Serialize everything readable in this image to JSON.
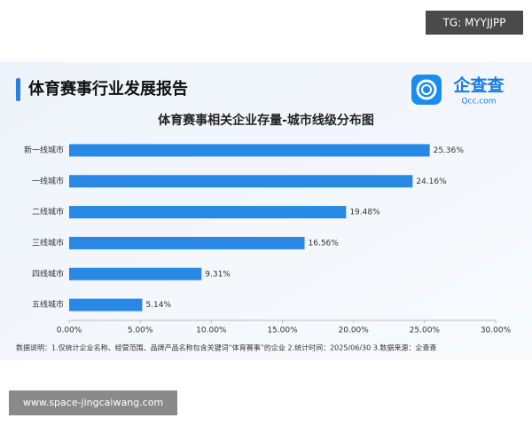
{
  "header": {
    "title": "体育赛事行业发展报告",
    "logo_name": "企查查",
    "logo_domain": "Qcc.com"
  },
  "watermarks": [
    "TG: MYYJJPP",
    "www.space-jingcaiwang.com"
  ],
  "chart_data": {
    "type": "hbar",
    "title": "体育赛事相关企业存量-城市线级分布图",
    "categories": [
      "新一线城市",
      "一线城市",
      "二线城市",
      "三线城市",
      "四线城市",
      "五线城市"
    ],
    "values": [
      25.36,
      24.16,
      19.48,
      16.56,
      9.31,
      5.14
    ],
    "value_labels": [
      "25.36%",
      "24.16%",
      "19.48%",
      "16.56%",
      "9.31%",
      "5.14%"
    ],
    "color": "#2789e3",
    "xlim": [
      0,
      30
    ],
    "xticks": [
      {
        "value": 0,
        "label": "0.00%"
      },
      {
        "value": 5,
        "label": "5.00%"
      },
      {
        "value": 10,
        "label": "10.00%"
      },
      {
        "value": 15,
        "label": "15.00%"
      },
      {
        "value": 20,
        "label": "20.00%"
      },
      {
        "value": 25,
        "label": "25.00%"
      },
      {
        "value": 30,
        "label": "30.00%"
      }
    ],
    "grid": false,
    "note": "数据说明：1.仅统计企业名称、经营范围、品牌产品名称包含关键词“体育赛事”的企业  2.统计时间：2025/06/30  3.数据来源：企查查"
  }
}
